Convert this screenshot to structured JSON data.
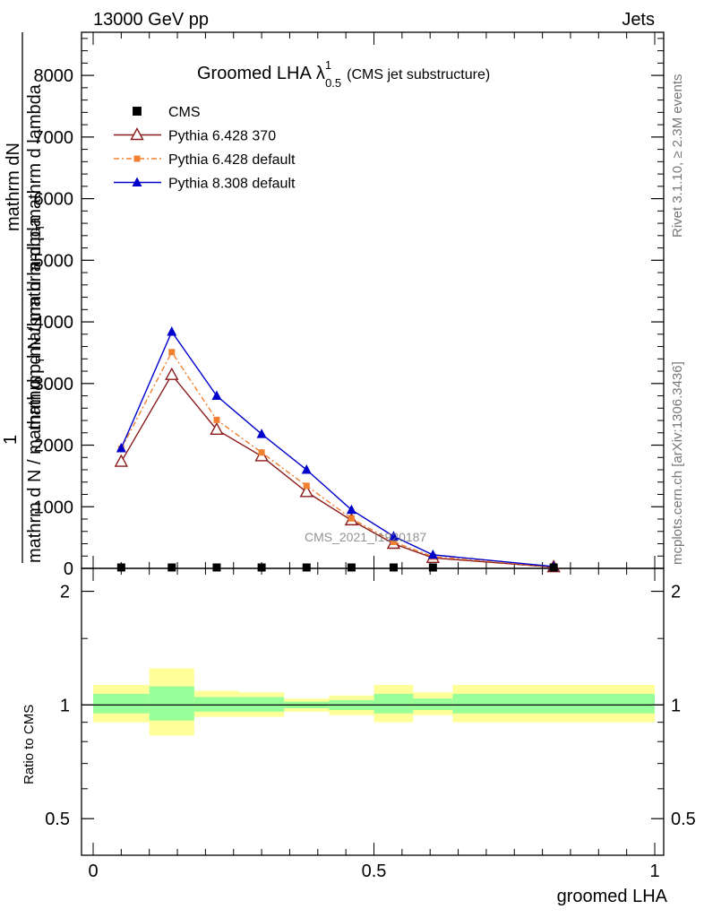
{
  "header": {
    "left": "13000 GeV pp",
    "right": "Jets"
  },
  "side_labels": {
    "rivet": "Rivet 3.1.10, ≥ 2.3M events",
    "mcplots": "mcplots.cern.ch [arXiv:1306.3436]"
  },
  "title": {
    "main": "Groomed LHA",
    "lambda": "λ",
    "sup": "1",
    "sub": "0.5",
    "suffix": "(CMS jet substructure)"
  },
  "ylabel_top": {
    "numerator": "mathrm dN",
    "frac_one": "1",
    "line1": "mathrm d N / mathrm d p",
    "line1_sub": "T",
    "line1_rest": "mathrm d lambda",
    "line2": "mathrm d N / mathrm d p",
    "line2_sub": "T",
    "line2_rest": "mathrm d lambda"
  },
  "ylabel_bottom": "Ratio to CMS",
  "xlabel": "groomed LHA",
  "watermark": "CMS_2021_I1920187",
  "legend": [
    {
      "name": "CMS",
      "color": "#000000",
      "marker": "square",
      "line": "none"
    },
    {
      "name": "Pythia 6.428 370",
      "color": "#8b1a1a",
      "marker": "triangle-open",
      "line": "solid"
    },
    {
      "name": "Pythia 6.428 default",
      "color": "#f08030",
      "marker": "square-small",
      "line": "dashdot"
    },
    {
      "name": "Pythia 8.308 default",
      "color": "#0000cc",
      "marker": "triangle",
      "line": "solid"
    }
  ],
  "chart_data": [
    {
      "type": "line",
      "panel": "main",
      "xlim": [
        0,
        1
      ],
      "ylim": [
        0,
        8700
      ],
      "yticks": [
        0,
        1000,
        2000,
        3000,
        4000,
        5000,
        6000,
        7000,
        8000
      ],
      "ytick_labels": [
        "0",
        "1000",
        "2000",
        "3000",
        "4000",
        "5000",
        "6000",
        "7000",
        "8000"
      ],
      "x": [
        0.05,
        0.14,
        0.22,
        0.3,
        0.38,
        0.46,
        0.535,
        0.605,
        0.82
      ],
      "series": [
        {
          "name": "CMS",
          "values": [
            5,
            5,
            5,
            5,
            5,
            5,
            5,
            5,
            5
          ]
        },
        {
          "name": "Pythia 6.428 370",
          "values": [
            1730,
            3140,
            2250,
            1820,
            1240,
            780,
            400,
            170,
            20
          ]
        },
        {
          "name": "Pythia 6.428 default",
          "values": [
            1940,
            3510,
            2410,
            1880,
            1340,
            810,
            430,
            190,
            25
          ]
        },
        {
          "name": "Pythia 8.308 default",
          "values": [
            1950,
            3840,
            2800,
            2180,
            1600,
            950,
            520,
            220,
            30
          ]
        }
      ]
    },
    {
      "type": "area",
      "panel": "ratio",
      "xlim": [
        0,
        1
      ],
      "ylim": [
        0.4,
        2.3
      ],
      "scale": "log",
      "yticks": [
        0.5,
        1,
        2
      ],
      "ytick_labels": [
        "0.5",
        "1",
        "2"
      ],
      "xticks": [
        0,
        0.5,
        1
      ],
      "xtick_labels": [
        "0",
        "0.5",
        "1"
      ],
      "bins": [
        [
          0,
          0.1
        ],
        [
          0.1,
          0.18
        ],
        [
          0.18,
          0.26
        ],
        [
          0.26,
          0.34
        ],
        [
          0.34,
          0.42
        ],
        [
          0.42,
          0.5
        ],
        [
          0.5,
          0.57
        ],
        [
          0.57,
          0.64
        ],
        [
          0.64,
          1.0
        ]
      ],
      "yellow_band": [
        [
          0.9,
          1.13
        ],
        [
          0.83,
          1.25
        ],
        [
          0.93,
          1.09
        ],
        [
          0.93,
          1.08
        ],
        [
          0.96,
          1.04
        ],
        [
          0.94,
          1.06
        ],
        [
          0.9,
          1.13
        ],
        [
          0.94,
          1.08
        ],
        [
          0.9,
          1.13
        ]
      ],
      "green_band": [
        [
          0.95,
          1.07
        ],
        [
          0.91,
          1.12
        ],
        [
          0.96,
          1.05
        ],
        [
          0.96,
          1.05
        ],
        [
          0.98,
          1.02
        ],
        [
          0.97,
          1.03
        ],
        [
          0.95,
          1.07
        ],
        [
          0.97,
          1.04
        ],
        [
          0.95,
          1.07
        ]
      ],
      "band_colors": {
        "yellow": "#ffff99",
        "green": "#99ff99"
      },
      "reference_line": 1
    }
  ]
}
